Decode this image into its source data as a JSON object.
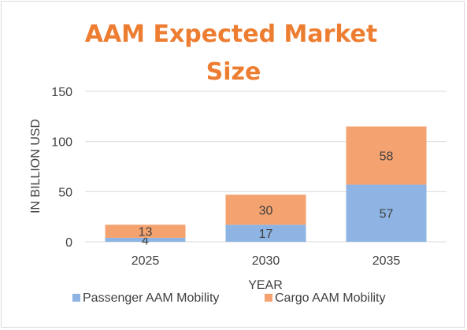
{
  "chart_data": {
    "type": "bar",
    "stacked": true,
    "title_lines": [
      "AAM Expected Market",
      "Size"
    ],
    "xlabel": "YEAR",
    "ylabel": "IN BILLION USD",
    "categories": [
      "2025",
      "2030",
      "2035"
    ],
    "ylim": [
      0,
      150
    ],
    "yticks": [
      0,
      50,
      100,
      150
    ],
    "grid": true,
    "legend_position": "bottom",
    "series": [
      {
        "name": "Passenger AAM Mobility",
        "values": [
          4,
          17,
          57
        ],
        "color": "#8db4e2"
      },
      {
        "name": "Cargo AAM Mobility",
        "values": [
          13,
          30,
          58
        ],
        "color": "#f4a26f"
      }
    ]
  }
}
